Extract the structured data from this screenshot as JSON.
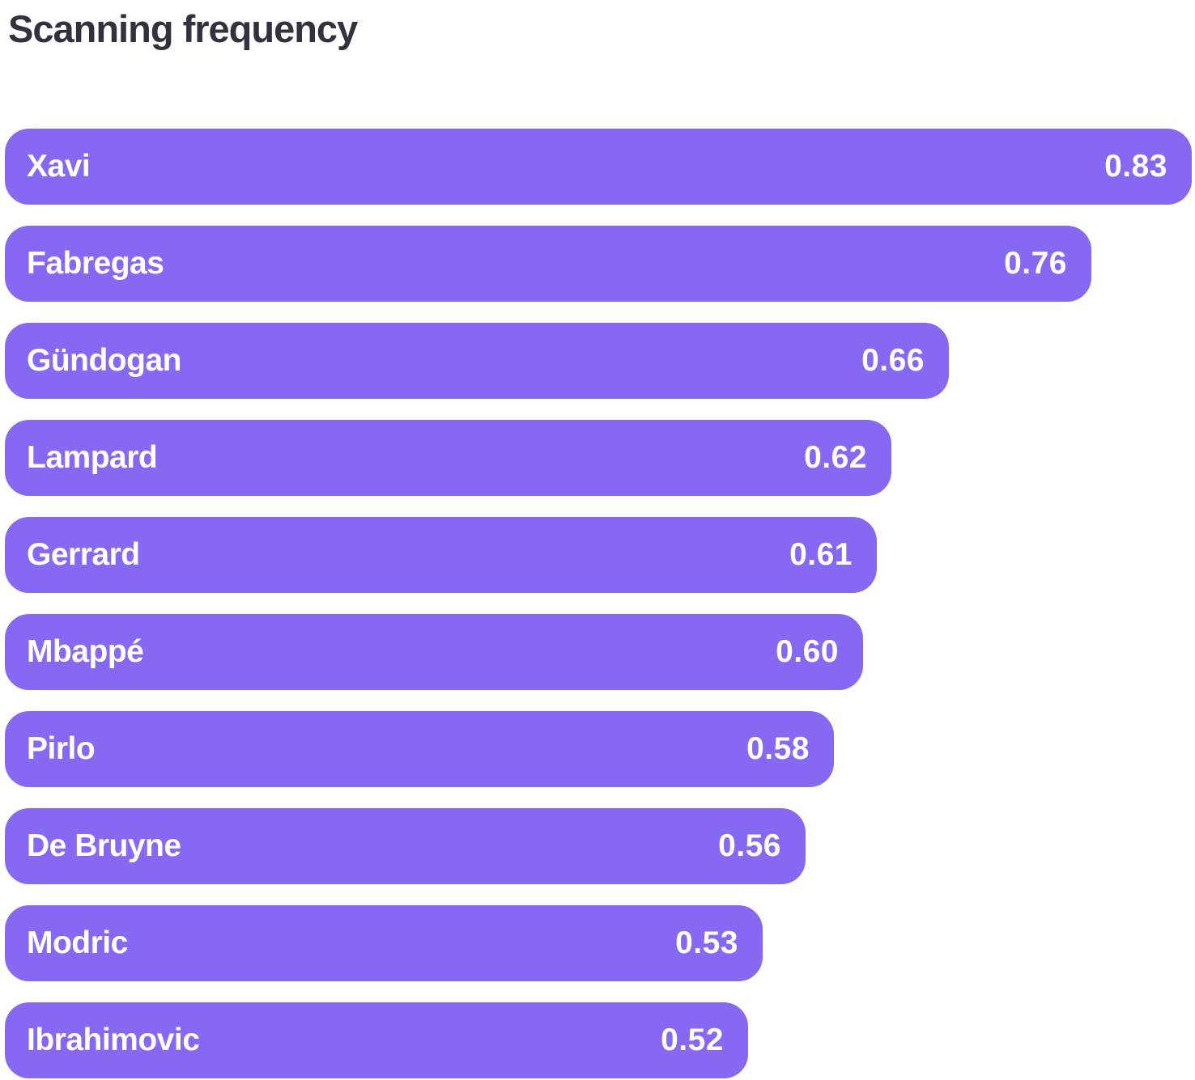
{
  "title": "Scanning frequency",
  "colors": {
    "bar": "#8768F2",
    "bar_text": "#FFFFFF",
    "title": "#32323E",
    "background": "#FFFFFF"
  },
  "chart_data": {
    "type": "bar",
    "orientation": "horizontal",
    "title": "Scanning frequency",
    "categories": [
      "Xavi",
      "Fabregas",
      "Gündogan",
      "Lampard",
      "Gerrard",
      "Mbappé",
      "Pirlo",
      "De Bruyne",
      "Modric",
      "Ibrahimovic"
    ],
    "values": [
      0.83,
      0.76,
      0.66,
      0.62,
      0.61,
      0.6,
      0.58,
      0.56,
      0.53,
      0.52
    ],
    "value_labels": [
      "0.83",
      "0.76",
      "0.66",
      "0.62",
      "0.61",
      "0.60",
      "0.58",
      "0.56",
      "0.53",
      "0.52"
    ],
    "xlabel": "",
    "ylabel": "",
    "xlim": [
      0,
      0.836
    ],
    "grid": false,
    "legend": false,
    "bar_label_position": "inside-left",
    "value_label_position": "inside-right"
  }
}
